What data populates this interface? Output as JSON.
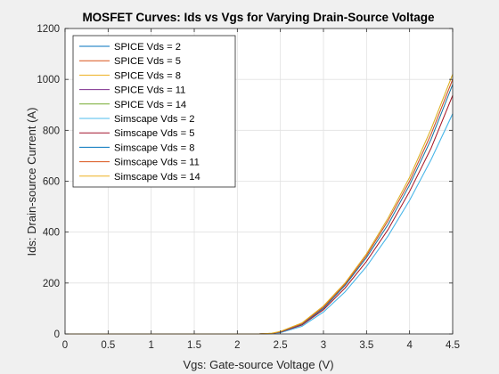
{
  "chart_data": {
    "type": "line",
    "title": "MOSFET Curves: Ids vs Vgs for Varying Drain-Source Voltage",
    "xlabel": "Vgs: Gate-source Voltage (V)",
    "ylabel": "Ids: Drain-source Current (A)",
    "xlim": [
      0,
      4.5
    ],
    "ylim": [
      0,
      1200
    ],
    "xticks": [
      0,
      0.5,
      1,
      1.5,
      2,
      2.5,
      3,
      3.5,
      4,
      4.5
    ],
    "xtick_labels": [
      "0",
      "0.5",
      "1",
      "1.5",
      "2",
      "2.5",
      "3",
      "3.5",
      "4",
      "4.5"
    ],
    "yticks": [
      0,
      200,
      400,
      600,
      800,
      1000,
      1200
    ],
    "ytick_labels": [
      "0",
      "200",
      "400",
      "600",
      "800",
      "1000",
      "1200"
    ],
    "grid": true,
    "legend_position": "top-left",
    "x": [
      0,
      0.5,
      1.0,
      1.5,
      2.0,
      2.25,
      2.4,
      2.5,
      2.75,
      3.0,
      3.25,
      3.5,
      3.75,
      4.0,
      4.25,
      4.5
    ],
    "series": [
      {
        "name": "SPICE Vds = 2",
        "color": "#0072bd",
        "values": [
          0,
          0,
          0,
          0,
          0,
          0,
          1,
          5,
          30,
          86,
          165,
          265,
          385,
          525,
          685,
          865
        ]
      },
      {
        "name": "SPICE Vds = 5",
        "color": "#d95319",
        "values": [
          0,
          0,
          0,
          0,
          0,
          0,
          2,
          7,
          35,
          95,
          180,
          285,
          410,
          560,
          730,
          937
        ]
      },
      {
        "name": "SPICE Vds = 8",
        "color": "#edb120",
        "values": [
          0,
          0,
          0,
          0,
          0,
          0,
          2,
          8,
          38,
          100,
          190,
          300,
          430,
          585,
          765,
          980
        ]
      },
      {
        "name": "SPICE Vds = 11",
        "color": "#7e2f8e",
        "values": [
          0,
          0,
          0,
          0,
          0,
          0,
          2,
          9,
          40,
          105,
          195,
          308,
          445,
          600,
          785,
          1000
        ]
      },
      {
        "name": "SPICE Vds = 14",
        "color": "#77ac30",
        "values": [
          0,
          0,
          0,
          0,
          0,
          0,
          3,
          10,
          43,
          110,
          200,
          315,
          455,
          615,
          805,
          1020
        ]
      },
      {
        "name": "Simscape Vds = 2",
        "color": "#4dbeee",
        "values": [
          0,
          0,
          0,
          0,
          0,
          0,
          1,
          5,
          30,
          86,
          165,
          265,
          385,
          525,
          685,
          865
        ]
      },
      {
        "name": "Simscape Vds = 5",
        "color": "#a2142f",
        "values": [
          0,
          0,
          0,
          0,
          0,
          0,
          2,
          7,
          35,
          95,
          180,
          285,
          410,
          560,
          730,
          937
        ]
      },
      {
        "name": "Simscape Vds = 8",
        "color": "#0072bd",
        "values": [
          0,
          0,
          0,
          0,
          0,
          0,
          2,
          8,
          38,
          100,
          190,
          300,
          430,
          585,
          765,
          980
        ]
      },
      {
        "name": "Simscape Vds = 11",
        "color": "#d95319",
        "values": [
          0,
          0,
          0,
          0,
          0,
          0,
          2,
          9,
          40,
          105,
          195,
          308,
          445,
          600,
          785,
          1000
        ]
      },
      {
        "name": "Simscape Vds = 14",
        "color": "#edb120",
        "values": [
          0,
          0,
          0,
          0,
          0,
          0,
          3,
          10,
          43,
          110,
          200,
          315,
          455,
          615,
          805,
          1020
        ]
      }
    ]
  }
}
